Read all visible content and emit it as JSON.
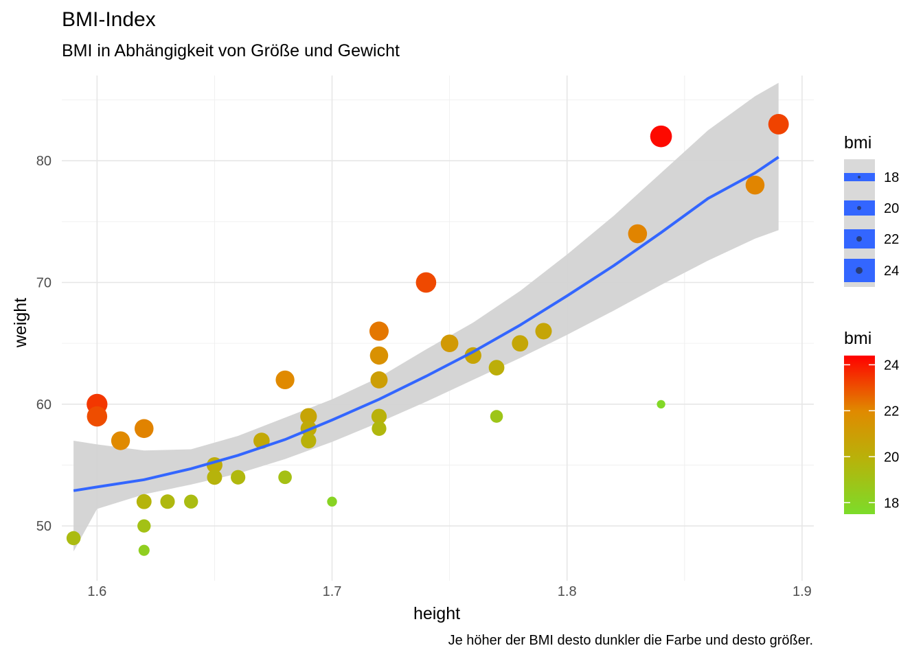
{
  "chart_data": {
    "type": "scatter",
    "title": "BMI-Index",
    "subtitle": "BMI in Abhängigkeit von Größe und Gewicht",
    "caption": "Je höher der BMI desto dunkler die Farbe und desto größer.",
    "xlabel": "height",
    "ylabel": "weight",
    "xlim": [
      1.585,
      1.905
    ],
    "ylim": [
      45.5,
      87
    ],
    "x_ticks": [
      1.6,
      1.7,
      1.8,
      1.9
    ],
    "x_tick_labels": [
      "1.6",
      "1.7",
      "1.8",
      "1.9"
    ],
    "y_ticks": [
      50,
      60,
      70,
      80
    ],
    "y_tick_labels": [
      "50",
      "60",
      "70",
      "80"
    ],
    "grid": true,
    "color_scale": {
      "low": "#7CDC2A",
      "high": "#FF0000",
      "min": 17.5,
      "max": 24.4
    },
    "points": [
      {
        "height": 1.59,
        "weight": 49
      },
      {
        "height": 1.6,
        "weight": 60
      },
      {
        "height": 1.6,
        "weight": 59
      },
      {
        "height": 1.61,
        "weight": 57
      },
      {
        "height": 1.62,
        "weight": 58
      },
      {
        "height": 1.62,
        "weight": 52
      },
      {
        "height": 1.62,
        "weight": 50
      },
      {
        "height": 1.62,
        "weight": 48
      },
      {
        "height": 1.63,
        "weight": 52
      },
      {
        "height": 1.64,
        "weight": 52
      },
      {
        "height": 1.65,
        "weight": 55
      },
      {
        "height": 1.65,
        "weight": 54
      },
      {
        "height": 1.66,
        "weight": 54
      },
      {
        "height": 1.67,
        "weight": 57
      },
      {
        "height": 1.68,
        "weight": 62
      },
      {
        "height": 1.68,
        "weight": 54
      },
      {
        "height": 1.69,
        "weight": 59
      },
      {
        "height": 1.69,
        "weight": 58
      },
      {
        "height": 1.69,
        "weight": 57
      },
      {
        "height": 1.7,
        "weight": 52
      },
      {
        "height": 1.72,
        "weight": 66
      },
      {
        "height": 1.72,
        "weight": 64
      },
      {
        "height": 1.72,
        "weight": 62
      },
      {
        "height": 1.72,
        "weight": 59
      },
      {
        "height": 1.72,
        "weight": 58
      },
      {
        "height": 1.74,
        "weight": 70
      },
      {
        "height": 1.75,
        "weight": 65
      },
      {
        "height": 1.76,
        "weight": 64
      },
      {
        "height": 1.77,
        "weight": 63
      },
      {
        "height": 1.77,
        "weight": 59
      },
      {
        "height": 1.78,
        "weight": 65
      },
      {
        "height": 1.79,
        "weight": 66
      },
      {
        "height": 1.83,
        "weight": 74
      },
      {
        "height": 1.84,
        "weight": 82
      },
      {
        "height": 1.84,
        "weight": 60
      },
      {
        "height": 1.88,
        "weight": 78
      },
      {
        "height": 1.89,
        "weight": 83
      }
    ],
    "smooth": {
      "x": [
        1.59,
        1.6,
        1.62,
        1.64,
        1.66,
        1.68,
        1.7,
        1.72,
        1.74,
        1.76,
        1.78,
        1.8,
        1.82,
        1.84,
        1.86,
        1.88,
        1.89
      ],
      "y": [
        52.9,
        53.2,
        53.8,
        54.7,
        55.8,
        57.1,
        58.7,
        60.4,
        62.3,
        64.3,
        66.5,
        68.9,
        71.4,
        74.1,
        76.9,
        79.0,
        80.3
      ],
      "ymin": [
        47.9,
        51.4,
        52.6,
        53.4,
        54.3,
        55.5,
        56.9,
        58.5,
        60.2,
        62.0,
        63.8,
        65.7,
        67.7,
        69.8,
        71.8,
        73.6,
        74.3
      ],
      "ymax": [
        57.0,
        56.7,
        56.2,
        56.3,
        57.4,
        58.9,
        60.4,
        62.2,
        64.5,
        66.7,
        69.3,
        72.3,
        75.5,
        79.0,
        82.5,
        85.3,
        86.4
      ]
    },
    "legend_size": {
      "title": "bmi",
      "labels": [
        "18",
        "20",
        "22",
        "24"
      ],
      "values": [
        18,
        20,
        22,
        24
      ]
    },
    "legend_color": {
      "title": "bmi",
      "labels": [
        "24",
        "22",
        "20",
        "18"
      ],
      "values": [
        24,
        22,
        20,
        18
      ]
    },
    "line_color": "#3366FF",
    "ribbon_color": "#D3D3D3",
    "legend_placement": "right"
  }
}
